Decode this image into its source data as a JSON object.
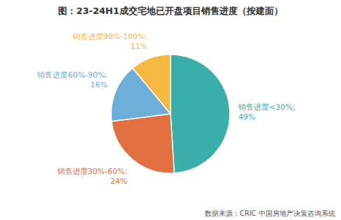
{
  "chart_data": {
    "type": "pie",
    "title": "图：23-24H1成交宅地已开盘项目销售进度（按建面）",
    "categories": [
      "销售进度<30%;",
      "销售进度30%-60%;",
      "销售进度60%-90%;",
      "销售进度90%-100%;"
    ],
    "values": [
      49,
      24,
      16,
      11
    ],
    "value_labels": [
      "49%",
      "24%",
      "16%",
      "11%"
    ],
    "data_labels": true,
    "colors": [
      "#3AAFA9",
      "#E07040",
      "#6BAED6",
      "#F5B942"
    ],
    "annotations": [
      "数据来源：CRIC 中国房地产决策咨询系统"
    ]
  }
}
